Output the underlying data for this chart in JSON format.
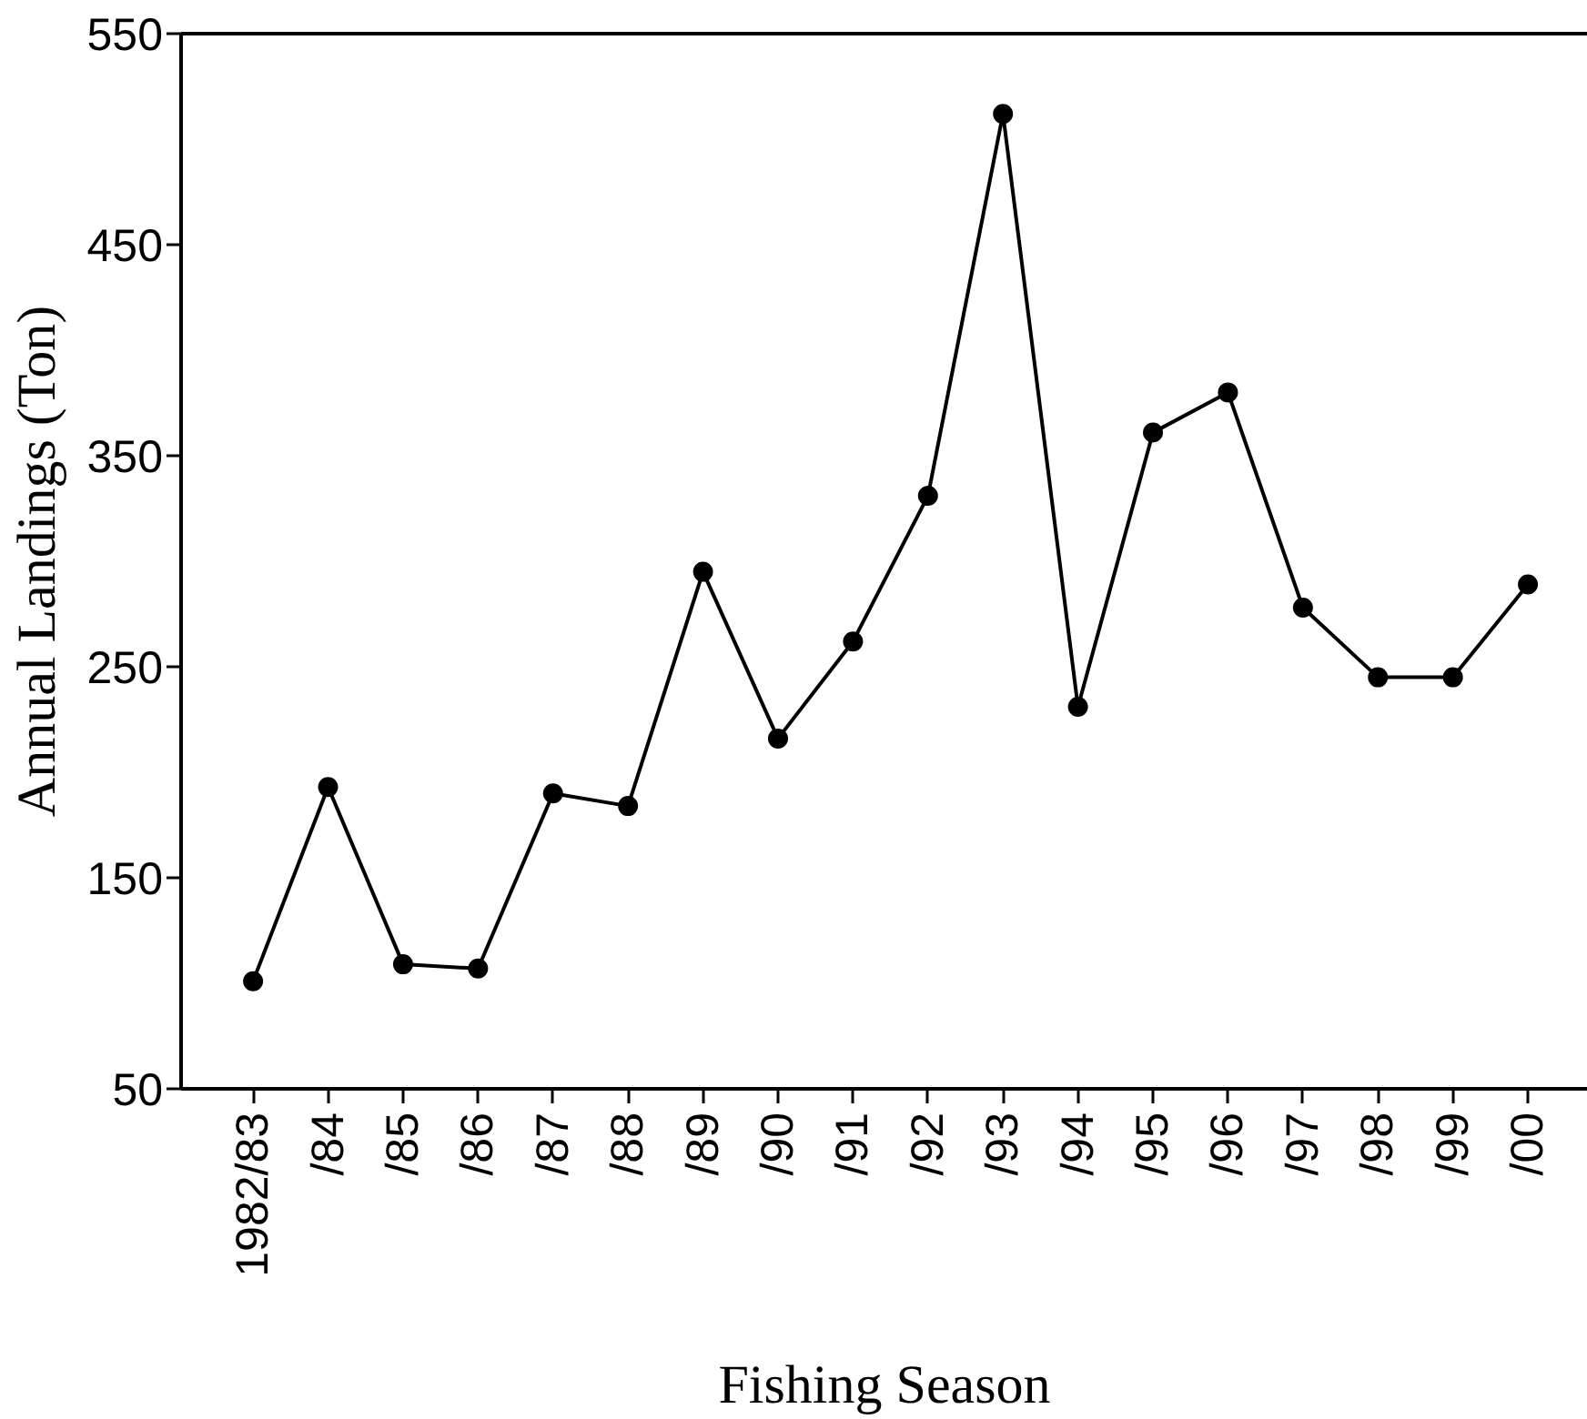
{
  "chart_data": {
    "type": "line",
    "xlabel": "Fishing Season",
    "ylabel": "Annual Landings (Ton)",
    "categories": [
      "1982/83",
      "/84",
      "/85",
      "/86",
      "/87",
      "/88",
      "/89",
      "/90",
      "/91",
      "/92",
      "/93",
      "/94",
      "/95",
      "/96",
      "/97",
      "/98",
      "/99",
      "/00"
    ],
    "series": [
      {
        "color": "#000000",
        "values": [
          101,
          193,
          109,
          107,
          190,
          184,
          295,
          216,
          262,
          331,
          512,
          231,
          361,
          380,
          278,
          245,
          245,
          289
        ]
      }
    ],
    "ylim": [
      50,
      550
    ],
    "yticks": [
      50,
      150,
      250,
      350,
      450,
      550
    ],
    "marker": "circle",
    "line_style": "solid"
  }
}
